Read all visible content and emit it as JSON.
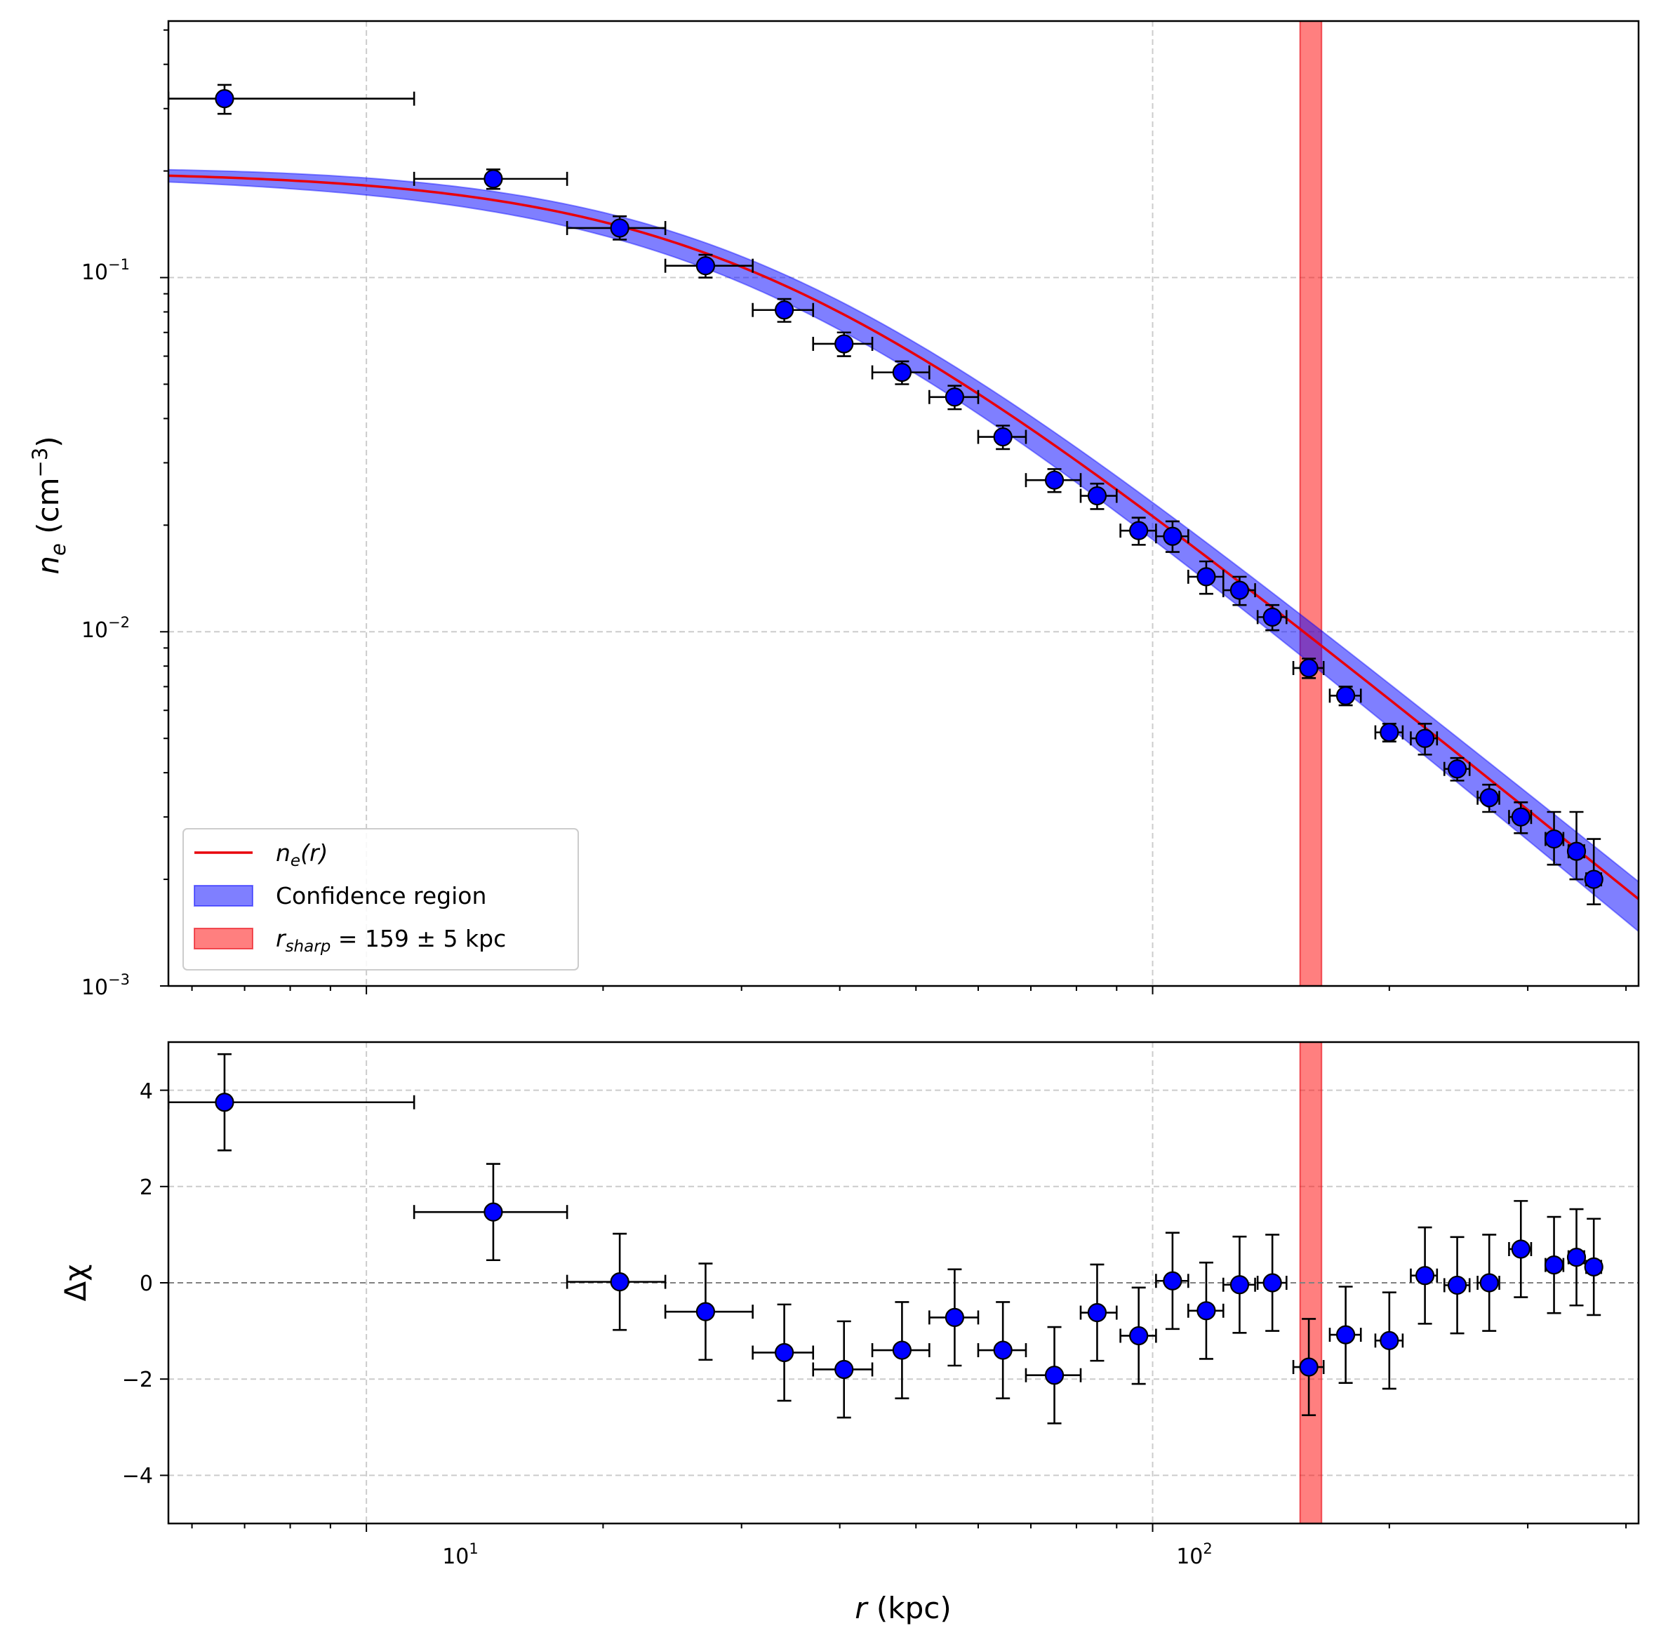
{
  "chart_data": [
    {
      "type": "scatter",
      "panel": "top",
      "xscale": "log",
      "yscale": "log",
      "xlim": [
        5.6,
        415
      ],
      "ylim": [
        0.001,
        0.53
      ],
      "ylabel_sym": "n",
      "ylabel_sub": "e",
      "ylabel_unit_pre": " (cm",
      "ylabel_unit_sup": "−3",
      "ylabel_unit_post": ")",
      "yticks": [
        {
          "value": 0.1,
          "base": "10",
          "exp": "−1"
        },
        {
          "value": 0.01,
          "base": "10",
          "exp": "−2"
        },
        {
          "value": 0.001,
          "base": "10",
          "exp": "−3"
        }
      ],
      "model": {
        "name": "n_e(r)",
        "type": "beta",
        "n0": 0.2,
        "rc": 30,
        "beta": 0.6,
        "band_lower_at_rmin": 0.96,
        "band_upper_at_rmin": 1.04,
        "band_lower_at_rmax": 0.81,
        "band_upper_at_rmax": 1.12
      },
      "points": [
        {
          "x": 6.6,
          "xlo": 5.6,
          "xhi": 11.5,
          "y": 0.32,
          "ylo": 0.29,
          "yhi": 0.35
        },
        {
          "x": 14.5,
          "xlo": 11.5,
          "xhi": 18,
          "y": 0.19,
          "ylo": 0.178,
          "yhi": 0.202
        },
        {
          "x": 21,
          "xlo": 18,
          "xhi": 24,
          "y": 0.138,
          "ylo": 0.128,
          "yhi": 0.149
        },
        {
          "x": 27,
          "xlo": 24,
          "xhi": 31,
          "y": 0.108,
          "ylo": 0.1,
          "yhi": 0.116
        },
        {
          "x": 34,
          "xlo": 31,
          "xhi": 37,
          "y": 0.081,
          "ylo": 0.075,
          "yhi": 0.087
        },
        {
          "x": 40.5,
          "xlo": 37,
          "xhi": 44,
          "y": 0.065,
          "ylo": 0.06,
          "yhi": 0.07
        },
        {
          "x": 48,
          "xlo": 44,
          "xhi": 52,
          "y": 0.054,
          "ylo": 0.05,
          "yhi": 0.058
        },
        {
          "x": 56,
          "xlo": 52,
          "xhi": 60,
          "y": 0.046,
          "ylo": 0.0425,
          "yhi": 0.0495
        },
        {
          "x": 64.5,
          "xlo": 60,
          "xhi": 69,
          "y": 0.0355,
          "ylo": 0.0328,
          "yhi": 0.0382
        },
        {
          "x": 75,
          "xlo": 69,
          "xhi": 81,
          "y": 0.0268,
          "ylo": 0.0248,
          "yhi": 0.0288
        },
        {
          "x": 85,
          "xlo": 81,
          "xhi": 90,
          "y": 0.0242,
          "ylo": 0.0222,
          "yhi": 0.0262
        },
        {
          "x": 96,
          "xlo": 91,
          "xhi": 101,
          "y": 0.0193,
          "ylo": 0.0176,
          "yhi": 0.021
        },
        {
          "x": 106,
          "xlo": 101,
          "xhi": 111,
          "y": 0.0186,
          "ylo": 0.0168,
          "yhi": 0.0205
        },
        {
          "x": 117,
          "xlo": 111,
          "xhi": 123,
          "y": 0.0143,
          "ylo": 0.0128,
          "yhi": 0.0158
        },
        {
          "x": 129,
          "xlo": 123,
          "xhi": 135,
          "y": 0.0131,
          "ylo": 0.0119,
          "yhi": 0.0143
        },
        {
          "x": 142,
          "xlo": 136,
          "xhi": 148,
          "y": 0.011,
          "ylo": 0.0101,
          "yhi": 0.0119
        },
        {
          "x": 158,
          "xlo": 151,
          "xhi": 165,
          "y": 0.0079,
          "ylo": 0.0074,
          "yhi": 0.0084
        },
        {
          "x": 176,
          "xlo": 168,
          "xhi": 184,
          "y": 0.0066,
          "ylo": 0.0062,
          "yhi": 0.007
        },
        {
          "x": 200,
          "xlo": 192,
          "xhi": 208,
          "y": 0.0052,
          "ylo": 0.0049,
          "yhi": 0.0055
        },
        {
          "x": 222,
          "xlo": 213,
          "xhi": 230,
          "y": 0.005,
          "ylo": 0.0045,
          "yhi": 0.0055
        },
        {
          "x": 244,
          "xlo": 235,
          "xhi": 253,
          "y": 0.0041,
          "ylo": 0.0038,
          "yhi": 0.0044
        },
        {
          "x": 268,
          "xlo": 259,
          "xhi": 276,
          "y": 0.0034,
          "ylo": 0.0031,
          "yhi": 0.0037
        },
        {
          "x": 294,
          "xlo": 284,
          "xhi": 303,
          "y": 0.003,
          "ylo": 0.0027,
          "yhi": 0.0033
        },
        {
          "x": 324,
          "xlo": 316,
          "xhi": 333,
          "y": 0.0026,
          "ylo": 0.0022,
          "yhi": 0.0031
        },
        {
          "x": 346,
          "xlo": 338,
          "xhi": 354,
          "y": 0.0024,
          "ylo": 0.002,
          "yhi": 0.0031
        },
        {
          "x": 364,
          "xlo": 356,
          "xhi": 372,
          "y": 0.002,
          "ylo": 0.0017,
          "yhi": 0.0026
        }
      ],
      "band": {
        "xmin": 154,
        "xmax": 164
      },
      "legend": {
        "position": "lower-left",
        "line_label_sym": "n",
        "line_label_sub": "e",
        "line_label_post": "(r)",
        "confidence_label": "Confidence region",
        "band_label_sym": "r",
        "band_label_sub": "sharp",
        "band_label_post": " = 159 ± 5 kpc"
      },
      "colors": {
        "model": "#e8000b",
        "confidence": "#0000ff",
        "band": "#ff0000",
        "marker": "#0000ff"
      }
    },
    {
      "type": "scatter",
      "panel": "bottom",
      "xscale": "log",
      "yscale": "linear",
      "xlim": [
        5.6,
        415
      ],
      "ylim": [
        -5,
        5
      ],
      "ylabel": "Δχ",
      "xlabel_sym": "r",
      "xlabel_post": " (kpc)",
      "yticks": [
        {
          "value": 4,
          "label": "4"
        },
        {
          "value": 2,
          "label": "2"
        },
        {
          "value": 0,
          "label": "0"
        },
        {
          "value": -2,
          "label": "−2"
        },
        {
          "value": -4,
          "label": "−4"
        }
      ],
      "xticks": [
        {
          "value": 10,
          "base": "10",
          "exp": "1"
        },
        {
          "value": 100,
          "base": "10",
          "exp": "2"
        }
      ],
      "points": [
        {
          "x": 6.6,
          "xlo": 5.6,
          "xhi": 11.5,
          "y": 3.75
        },
        {
          "x": 14.5,
          "xlo": 11.5,
          "xhi": 18,
          "y": 1.47
        },
        {
          "x": 21,
          "xlo": 18,
          "xhi": 24,
          "y": 0.02
        },
        {
          "x": 27,
          "xlo": 24,
          "xhi": 31,
          "y": -0.6
        },
        {
          "x": 34,
          "xlo": 31,
          "xhi": 37,
          "y": -1.45
        },
        {
          "x": 40.5,
          "xlo": 37,
          "xhi": 44,
          "y": -1.8
        },
        {
          "x": 48,
          "xlo": 44,
          "xhi": 52,
          "y": -1.4
        },
        {
          "x": 56,
          "xlo": 52,
          "xhi": 60,
          "y": -0.72
        },
        {
          "x": 64.5,
          "xlo": 60,
          "xhi": 69,
          "y": -1.4
        },
        {
          "x": 75,
          "xlo": 69,
          "xhi": 81,
          "y": -1.92
        },
        {
          "x": 85,
          "xlo": 81,
          "xhi": 90,
          "y": -0.62
        },
        {
          "x": 96,
          "xlo": 91,
          "xhi": 101,
          "y": -1.1
        },
        {
          "x": 106,
          "xlo": 101,
          "xhi": 111,
          "y": 0.04
        },
        {
          "x": 117,
          "xlo": 111,
          "xhi": 123,
          "y": -0.58
        },
        {
          "x": 129,
          "xlo": 123,
          "xhi": 135,
          "y": -0.04
        },
        {
          "x": 142,
          "xlo": 136,
          "xhi": 148,
          "y": 0.0
        },
        {
          "x": 158,
          "xlo": 151,
          "xhi": 165,
          "y": -1.75
        },
        {
          "x": 176,
          "xlo": 168,
          "xhi": 184,
          "y": -1.08
        },
        {
          "x": 200,
          "xlo": 192,
          "xhi": 208,
          "y": -1.2
        },
        {
          "x": 222,
          "xlo": 213,
          "xhi": 230,
          "y": 0.15
        },
        {
          "x": 244,
          "xlo": 235,
          "xhi": 253,
          "y": -0.05
        },
        {
          "x": 268,
          "xlo": 259,
          "xhi": 276,
          "y": 0.0
        },
        {
          "x": 294,
          "xlo": 284,
          "xhi": 303,
          "y": 0.7
        },
        {
          "x": 324,
          "xlo": 316,
          "xhi": 333,
          "y": 0.37
        },
        {
          "x": 346,
          "xlo": 338,
          "xhi": 354,
          "y": 0.53
        },
        {
          "x": 364,
          "xlo": 356,
          "xhi": 372,
          "y": 0.33
        }
      ],
      "y_err": 1.0,
      "band": {
        "xmin": 154,
        "xmax": 164
      },
      "zero_line": 0
    }
  ]
}
